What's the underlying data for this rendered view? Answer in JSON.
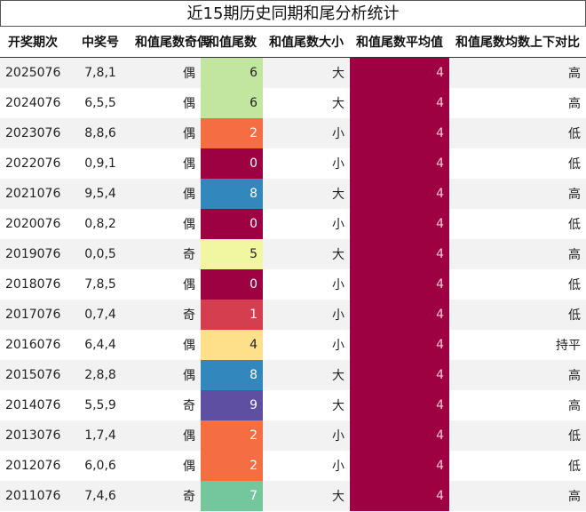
{
  "title": "近15期历史同期和尾分析统计",
  "headers": [
    "开奖期次",
    "中奖号",
    "和值尾数奇偶",
    "和值尾数",
    "和值尾数大小",
    "和值尾数平均值",
    "和值尾数均数上下对比"
  ],
  "tail_colors": {
    "0": "#9e0142",
    "1": "#d53e4f",
    "2": "#f46d43",
    "4": "#fee08b",
    "5": "#f0f7a0",
    "6": "#c2e59f",
    "7": "#74c69d",
    "8": "#3288bd",
    "9": "#5e4fa2"
  },
  "avg_color": "#9e0142",
  "rows": [
    {
      "issue": "2025076",
      "numbers": "7,8,1",
      "parity": "偶",
      "tail": "6",
      "size": "大",
      "avg": "4",
      "compare": "高"
    },
    {
      "issue": "2024076",
      "numbers": "6,5,5",
      "parity": "偶",
      "tail": "6",
      "size": "大",
      "avg": "4",
      "compare": "高"
    },
    {
      "issue": "2023076",
      "numbers": "8,8,6",
      "parity": "偶",
      "tail": "2",
      "size": "小",
      "avg": "4",
      "compare": "低"
    },
    {
      "issue": "2022076",
      "numbers": "0,9,1",
      "parity": "偶",
      "tail": "0",
      "size": "小",
      "avg": "4",
      "compare": "低"
    },
    {
      "issue": "2021076",
      "numbers": "9,5,4",
      "parity": "偶",
      "tail": "8",
      "size": "大",
      "avg": "4",
      "compare": "高"
    },
    {
      "issue": "2020076",
      "numbers": "0,8,2",
      "parity": "偶",
      "tail": "0",
      "size": "小",
      "avg": "4",
      "compare": "低"
    },
    {
      "issue": "2019076",
      "numbers": "0,0,5",
      "parity": "奇",
      "tail": "5",
      "size": "大",
      "avg": "4",
      "compare": "高"
    },
    {
      "issue": "2018076",
      "numbers": "7,8,5",
      "parity": "偶",
      "tail": "0",
      "size": "小",
      "avg": "4",
      "compare": "低"
    },
    {
      "issue": "2017076",
      "numbers": "0,7,4",
      "parity": "奇",
      "tail": "1",
      "size": "小",
      "avg": "4",
      "compare": "低"
    },
    {
      "issue": "2016076",
      "numbers": "6,4,4",
      "parity": "偶",
      "tail": "4",
      "size": "小",
      "avg": "4",
      "compare": "持平"
    },
    {
      "issue": "2015076",
      "numbers": "2,8,8",
      "parity": "偶",
      "tail": "8",
      "size": "大",
      "avg": "4",
      "compare": "高"
    },
    {
      "issue": "2014076",
      "numbers": "5,5,9",
      "parity": "奇",
      "tail": "9",
      "size": "大",
      "avg": "4",
      "compare": "高"
    },
    {
      "issue": "2013076",
      "numbers": "1,7,4",
      "parity": "偶",
      "tail": "2",
      "size": "小",
      "avg": "4",
      "compare": "低"
    },
    {
      "issue": "2012076",
      "numbers": "6,0,6",
      "parity": "偶",
      "tail": "2",
      "size": "小",
      "avg": "4",
      "compare": "低"
    },
    {
      "issue": "2011076",
      "numbers": "7,4,6",
      "parity": "奇",
      "tail": "7",
      "size": "大",
      "avg": "4",
      "compare": "高"
    }
  ]
}
